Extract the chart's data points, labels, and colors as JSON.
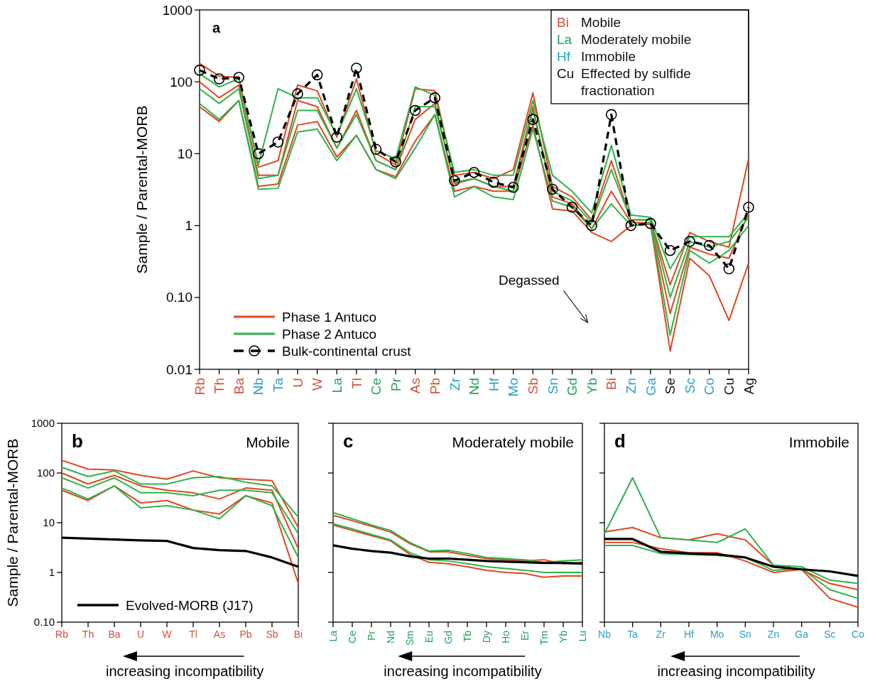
{
  "chart_data": [
    {
      "type": "line",
      "log": "y",
      "ylabel": "Sample / Parental-MORB",
      "legend": "bottom left",
      "annotations": [
        "a",
        "Bi Mobile",
        "La Moderately mobile",
        "Hf Immobile",
        "Cu Effected by sulfide fractionation",
        "Degassed"
      ],
      "categories": [
        "Rb",
        "Th",
        "Ba",
        "Nb",
        "Ta",
        "U",
        "W",
        "La",
        "Tl",
        "Ce",
        "Pr",
        "As",
        "Pb",
        "Zr",
        "Nd",
        "Hf",
        "Mo",
        "Sb",
        "Sn",
        "Gd",
        "Yb",
        "Bi",
        "Zn",
        "Ga",
        "Se",
        "Sc",
        "Co",
        "Cu",
        "Ag"
      ],
      "ylim": [
        0.01,
        1000
      ],
      "yticks": [
        0.01,
        {
          "value": 0.1,
          "label": "0.10"
        },
        1,
        10,
        100,
        1000
      ],
      "series": [
        {
          "name": "Phase 1 Antuco",
          "color": "#e2461f",
          "values": [
            180,
            120,
            115,
            6.5,
            8,
            90,
            75,
            17,
            110,
            10,
            7,
            80,
            75,
            5,
            5.5,
            4.5,
            6,
            70,
            3.5,
            2.5,
            1.2,
            8,
            1.2,
            1.2,
            0.15,
            0.8,
            0.6,
            0.5,
            8.5
          ]
        },
        {
          "color": "#e2461f",
          "values": [
            100,
            60,
            90,
            5,
            5,
            55,
            45,
            12,
            40,
            8,
            6,
            30,
            50,
            3.8,
            4.5,
            3.5,
            3.5,
            45,
            2.5,
            2,
            0.9,
            3,
            1.1,
            1.1,
            0.06,
            0.5,
            0.4,
            0.35,
            1.5
          ]
        },
        {
          "color": "#e2461f",
          "values": [
            45,
            28,
            55,
            3.5,
            3.8,
            25,
            28,
            9,
            18,
            6,
            4.8,
            15,
            35,
            3,
            3.5,
            3,
            3,
            25,
            1.7,
            1.6,
            0.8,
            0.6,
            1,
            1.05,
            0.018,
            0.35,
            0.2,
            0.048,
            0.3
          ]
        },
        {
          "name": "Phase 2 Antuco",
          "color": "#2eb34a",
          "values": [
            130,
            85,
            110,
            7,
            80,
            60,
            60,
            18,
            80,
            11,
            8.5,
            85,
            65,
            5.5,
            6,
            5,
            5,
            55,
            5,
            3,
            1.5,
            13,
            1.4,
            1.3,
            0.25,
            0.7,
            0.7,
            0.7,
            1.5
          ]
        },
        {
          "color": "#2eb34a",
          "values": [
            80,
            50,
            80,
            4.5,
            5,
            40,
            40,
            12,
            35,
            8,
            6,
            45,
            45,
            4,
            4.5,
            3.5,
            3,
            40,
            3,
            2.2,
            1.1,
            6,
            1.2,
            1.2,
            0.1,
            0.6,
            0.5,
            0.6,
            1.3
          ]
        },
        {
          "color": "#2eb34a",
          "values": [
            50,
            30,
            55,
            3.2,
            3.3,
            20,
            22,
            8,
            18,
            6,
            4.5,
            12,
            35,
            2.5,
            3.5,
            2.5,
            2.3,
            22,
            2.2,
            1.8,
            0.9,
            2,
            1,
            1.1,
            0.03,
            0.45,
            0.3,
            0.45,
            1
          ]
        },
        {
          "name": "Bulk-continental crust",
          "color": "#000000",
          "marker": "circle",
          "line_style": "dashed",
          "values": [
            145,
            110,
            115,
            10,
            14.5,
            68,
            125,
            17,
            155,
            11.5,
            7.7,
            40,
            60,
            4.2,
            5.5,
            4,
            3.4,
            30,
            3.2,
            1.8,
            1,
            35,
            1,
            1.07,
            0.45,
            0.6,
            0.53,
            0.25,
            1.8
          ]
        }
      ]
    },
    {
      "type": "line",
      "log": "y",
      "title": "Mobile",
      "ylabel": "Sample / Parental-MORB",
      "xlabel": "increasing incompatibility",
      "legend": "bottom left",
      "annotations": [
        "b"
      ],
      "categories": [
        "Rb",
        "Th",
        "Ba",
        "U",
        "W",
        "Tl",
        "As",
        "Pb",
        "Sb",
        "Bi"
      ],
      "ylim": [
        0.1,
        1000
      ],
      "yticks": [
        {
          "value": 0.1,
          "label": "0.10"
        },
        1,
        10,
        100,
        1000
      ],
      "series": [
        {
          "color": "#e2461f",
          "values": [
            180,
            120,
            115,
            90,
            75,
            110,
            80,
            75,
            70,
            8
          ]
        },
        {
          "color": "#e2461f",
          "values": [
            100,
            60,
            90,
            55,
            45,
            40,
            30,
            50,
            45,
            3
          ]
        },
        {
          "color": "#e2461f",
          "values": [
            45,
            28,
            55,
            25,
            28,
            18,
            15,
            35,
            25,
            0.6
          ]
        },
        {
          "color": "#2eb34a",
          "values": [
            130,
            85,
            110,
            60,
            60,
            80,
            85,
            65,
            55,
            13
          ]
        },
        {
          "color": "#2eb34a",
          "values": [
            80,
            50,
            80,
            40,
            40,
            35,
            45,
            45,
            40,
            6
          ]
        },
        {
          "color": "#2eb34a",
          "values": [
            50,
            30,
            55,
            20,
            22,
            18,
            12,
            35,
            22,
            2
          ]
        },
        {
          "name": "Evolved-MORB (J17)",
          "color": "#000000",
          "values": [
            5,
            4.8,
            4.6,
            4.4,
            4.3,
            3.1,
            2.8,
            2.7,
            2,
            1.3
          ]
        }
      ]
    },
    {
      "type": "line",
      "log": "y",
      "title": "Moderately mobile",
      "xlabel": "increasing incompatibility",
      "tick_labels": "x",
      "annotations": [
        "c"
      ],
      "categories": [
        "La",
        "Ce",
        "Pr",
        "Nd",
        "Sm",
        "Eu",
        "Gd",
        "Tb",
        "Dy",
        "Ho",
        "Er",
        "Tm",
        "Yb",
        "Lu"
      ],
      "ylim": [
        0.1,
        1000
      ],
      "yticks": [
        {
          "value": 0.1,
          "label": null
        },
        {
          "value": 1,
          "label": null
        },
        {
          "value": 10,
          "label": null
        },
        {
          "value": 100,
          "label": null
        },
        {
          "value": 1000,
          "label": null
        }
      ],
      "series": [
        {
          "color": "#e2461f",
          "values": [
            14,
            11,
            8.5,
            6.5,
            3.8,
            2.6,
            2.6,
            2.2,
            1.9,
            1.8,
            1.7,
            1.8,
            1.5,
            1.6
          ]
        },
        {
          "color": "#e2461f",
          "values": [
            9,
            7,
            5.5,
            4.3,
            2.3,
            1.6,
            1.5,
            1.3,
            1.1,
            1,
            0.95,
            0.8,
            0.85,
            0.85
          ]
        },
        {
          "color": "#2eb34a",
          "values": [
            16,
            12,
            9,
            7,
            4,
            2.7,
            2.8,
            2.4,
            2,
            1.9,
            1.8,
            1.6,
            1.7,
            1.8
          ]
        },
        {
          "color": "#2eb34a",
          "values": [
            9.5,
            7.5,
            5.8,
            4.5,
            2.5,
            1.8,
            1.7,
            1.5,
            1.3,
            1.2,
            1.1,
            1,
            1,
            1
          ]
        },
        {
          "color": "#000000",
          "values": [
            3.5,
            3,
            2.7,
            2.5,
            2.1,
            1.9,
            1.9,
            1.8,
            1.7,
            1.65,
            1.6,
            1.55,
            1.55,
            1.5
          ]
        }
      ]
    },
    {
      "type": "line",
      "log": "y",
      "title": "Immobile",
      "xlabel": "increasing incompatibility",
      "tick_labels": "x",
      "annotations": [
        "d"
      ],
      "categories": [
        "Nb",
        "Ta",
        "Zr",
        "Hf",
        "Mo",
        "Sn",
        "Zn",
        "Ga",
        "Sc",
        "Co"
      ],
      "ylim": [
        0.1,
        1000
      ],
      "yticks": [
        {
          "value": 0.1,
          "label": null
        },
        {
          "value": 1,
          "label": null
        },
        {
          "value": 10,
          "label": null
        },
        {
          "value": 100,
          "label": null
        },
        {
          "value": 1000,
          "label": null
        }
      ],
      "series": [
        {
          "color": "#e2461f",
          "values": [
            6.5,
            8,
            5,
            4.5,
            6,
            4.5,
            1.4,
            1.15,
            0.6,
            0.45
          ]
        },
        {
          "color": "#e2461f",
          "values": [
            4,
            4,
            3,
            2.5,
            2.5,
            1.7,
            1,
            1.15,
            0.3,
            0.2
          ]
        },
        {
          "color": "#2eb34a",
          "values": [
            6,
            80,
            5,
            4.5,
            4,
            7.5,
            1.4,
            1.3,
            0.7,
            0.6
          ]
        },
        {
          "color": "#2eb34a",
          "values": [
            3.5,
            3.5,
            2.4,
            2.3,
            2.2,
            2,
            1.1,
            1.2,
            0.45,
            0.3
          ]
        },
        {
          "color": "#000000",
          "values": [
            4.7,
            4.7,
            2.6,
            2.4,
            2.3,
            2,
            1.3,
            1.15,
            1.05,
            0.85
          ]
        }
      ]
    }
  ]
}
